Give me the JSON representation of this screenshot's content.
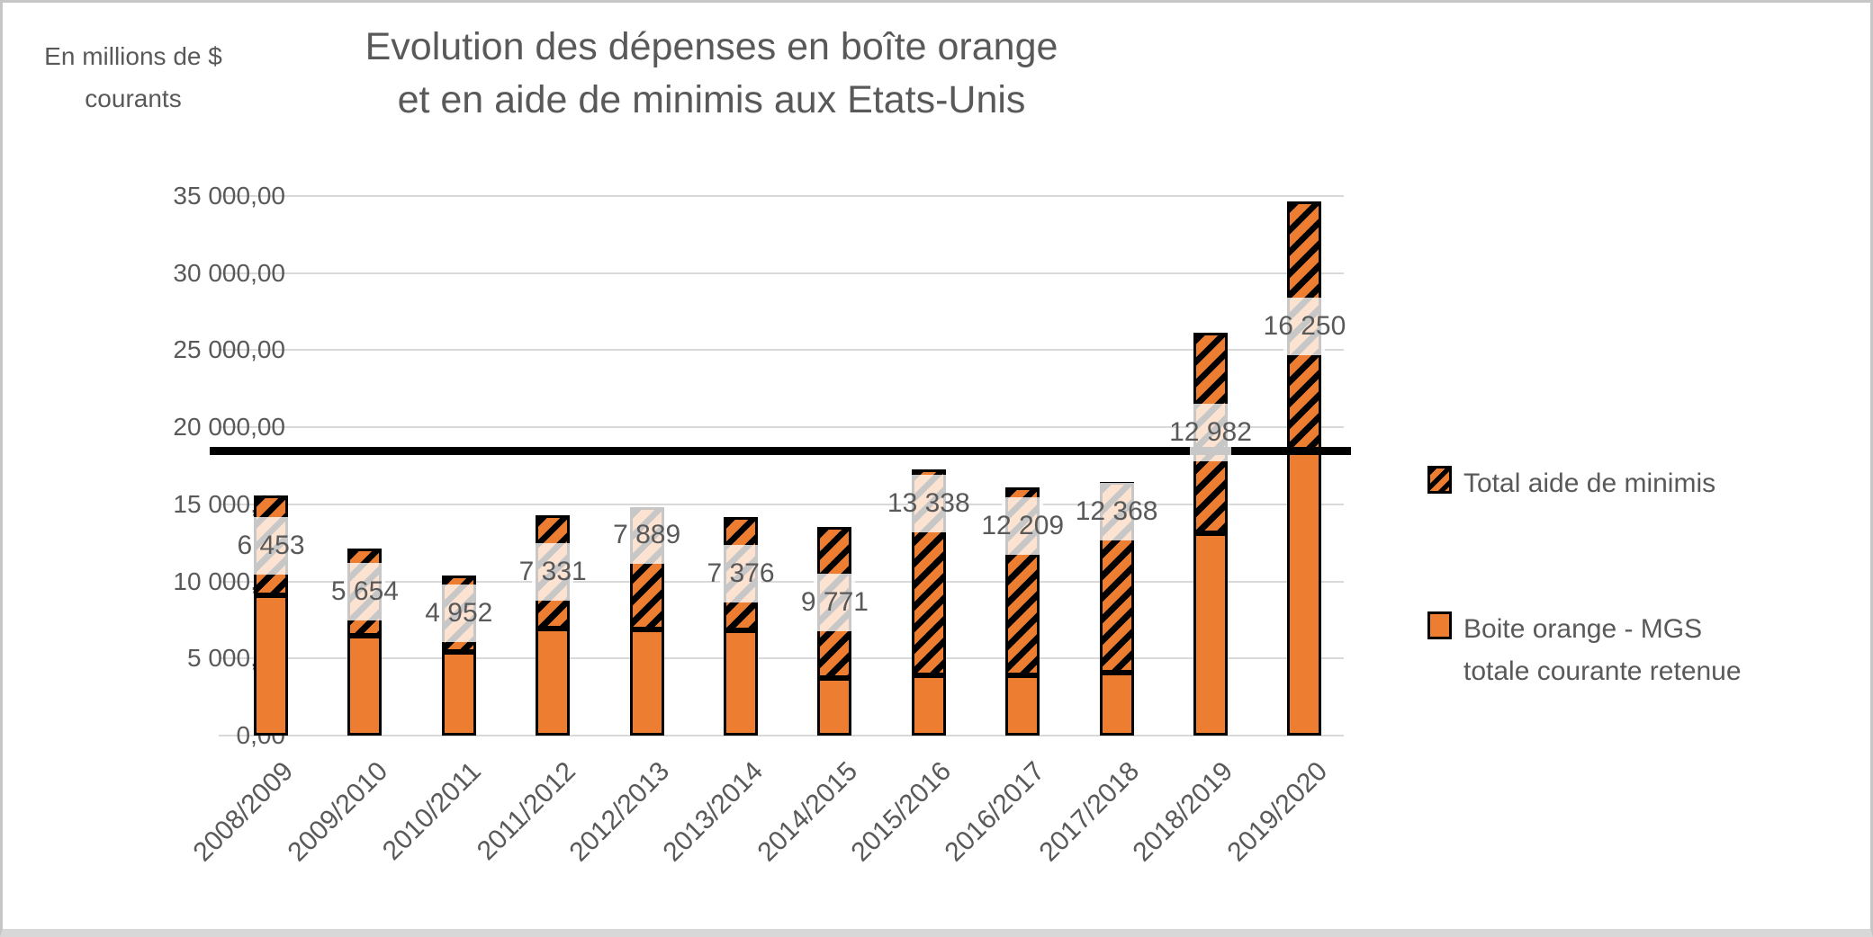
{
  "title": {
    "line1": "Evolution des dépenses en boîte orange",
    "line2": "et en aide de minimis aux Etats-Unis"
  },
  "axis_unit": {
    "line1": "En millions de $",
    "line2": "courants"
  },
  "legend": {
    "item1_label": "Total aide de minimis",
    "item2_label_line1": "Boite orange - MGS",
    "item2_label_line2": "totale courante retenue"
  },
  "chart_data": {
    "type": "bar",
    "stacked": true,
    "title": "Evolution des dépenses en boîte orange et en aide de minimis aux Etats-Unis",
    "ylabel": "En millions de $ courants",
    "ylim": [
      0,
      35000
    ],
    "grid": true,
    "legend_position": "right",
    "categories": [
      "2008/2009",
      "2009/2010",
      "2010/2011",
      "2011/2012",
      "2012/2013",
      "2013/2014",
      "2014/2015",
      "2015/2016",
      "2016/2017",
      "2017/2018",
      "2018/2019",
      "2019/2020"
    ],
    "y_ticks": [
      "35 000,00",
      "30 000,00",
      "25 000,00",
      "20 000,00",
      "15 000,00",
      "10 000,00",
      "5 000,00",
      "0,00"
    ],
    "series": [
      {
        "name": "Boite orange - MGS totale courante retenue",
        "style": "solid",
        "color": "#ED7D31",
        "values": [
          9100,
          6500,
          5450,
          6950,
          6900,
          6800,
          3750,
          3900,
          3900,
          4100,
          13150,
          18400
        ]
      },
      {
        "name": "Total aide de minimis",
        "style": "hatched",
        "color": "#ED7D31",
        "hatch_color": "#000000",
        "values": [
          6453,
          5654,
          4952,
          7331,
          7889,
          7376,
          9771,
          13338,
          12209,
          12368,
          12982,
          16250
        ],
        "labels": [
          "6 453",
          "5 654",
          "4 952",
          "7 331",
          "7 889",
          "7 376",
          "9 771",
          "13 338",
          "12 209",
          "12 368",
          "12 982",
          "16 250"
        ]
      }
    ],
    "reference_line": {
      "value": 18500,
      "color": "#000000"
    }
  },
  "colors": {
    "text": "#595959",
    "gridline": "#d9d9d9",
    "bar_orange": "#ED7D31",
    "bar_border": "#000000",
    "frame_border": "#c6c6c6",
    "frame_bottom": "#d8d8d8"
  }
}
